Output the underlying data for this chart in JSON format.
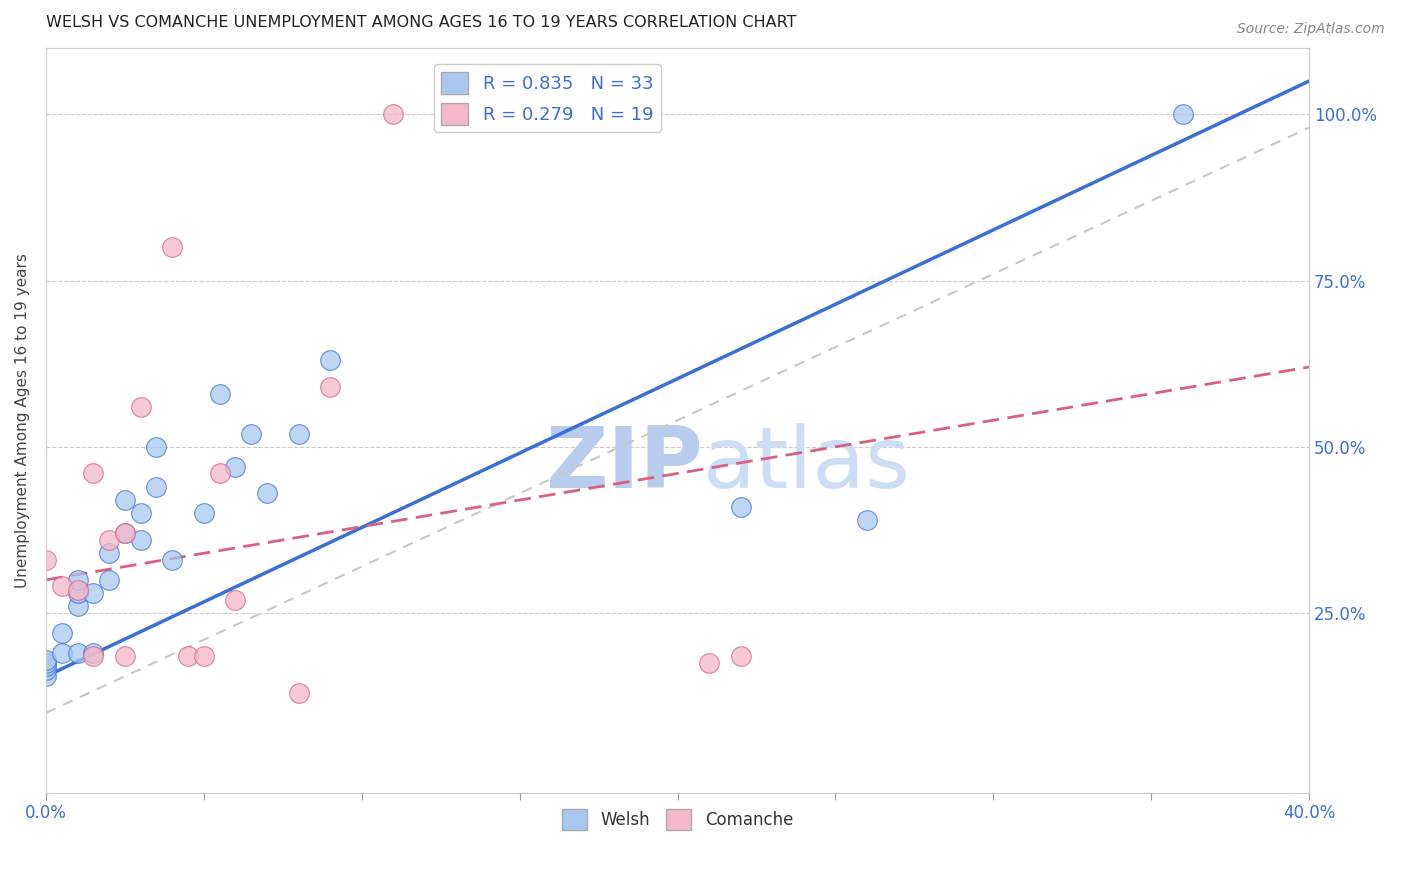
{
  "title": "WELSH VS COMANCHE UNEMPLOYMENT AMONG AGES 16 TO 19 YEARS CORRELATION CHART",
  "source": "Source: ZipAtlas.com",
  "ylabel": "Unemployment Among Ages 16 to 19 years",
  "welsh_R": 0.835,
  "welsh_N": 33,
  "comanche_R": 0.279,
  "comanche_N": 19,
  "xlim": [
    0.0,
    0.4
  ],
  "ylim": [
    -0.02,
    1.1
  ],
  "x_ticks": [
    0.0,
    0.05,
    0.1,
    0.15,
    0.2,
    0.25,
    0.3,
    0.35,
    0.4
  ],
  "y_ticks": [
    0.25,
    0.5,
    0.75,
    1.0
  ],
  "y_tick_labels": [
    "25.0%",
    "50.0%",
    "75.0%",
    "100.0%"
  ],
  "blue_color": "#a8c8f0",
  "pink_color": "#f5b8c8",
  "trend_blue": "#3a6fd8",
  "trend_pink": "#d96080",
  "ref_gray": "#c8c8c8",
  "watermark_color": "#d8e8f8",
  "welsh_points_x": [
    0.0,
    0.0,
    0.0,
    0.0,
    0.0,
    0.005,
    0.005,
    0.01,
    0.01,
    0.01,
    0.01,
    0.015,
    0.015,
    0.02,
    0.02,
    0.025,
    0.025,
    0.03,
    0.03,
    0.035,
    0.035,
    0.04,
    0.05,
    0.055,
    0.06,
    0.065,
    0.07,
    0.08,
    0.09,
    0.15,
    0.22,
    0.26,
    0.36
  ],
  "welsh_points_y": [
    0.155,
    0.165,
    0.17,
    0.175,
    0.18,
    0.19,
    0.22,
    0.19,
    0.26,
    0.28,
    0.3,
    0.19,
    0.28,
    0.3,
    0.34,
    0.37,
    0.42,
    0.36,
    0.4,
    0.44,
    0.5,
    0.33,
    0.4,
    0.58,
    0.47,
    0.52,
    0.43,
    0.52,
    0.63,
    1.0,
    0.41,
    0.39,
    1.0
  ],
  "comanche_points_x": [
    0.0,
    0.005,
    0.01,
    0.015,
    0.015,
    0.02,
    0.025,
    0.025,
    0.03,
    0.04,
    0.045,
    0.05,
    0.055,
    0.06,
    0.08,
    0.09,
    0.11,
    0.21,
    0.22
  ],
  "comanche_points_y": [
    0.33,
    0.29,
    0.285,
    0.46,
    0.185,
    0.36,
    0.37,
    0.185,
    0.56,
    0.8,
    0.185,
    0.185,
    0.46,
    0.27,
    0.13,
    0.59,
    1.0,
    0.175,
    0.185
  ],
  "background_color": "#ffffff",
  "grid_color": "#cccccc",
  "welsh_trend_x": [
    0.0,
    0.4
  ],
  "welsh_trend_y": [
    0.155,
    1.05
  ],
  "comanche_trend_x": [
    0.0,
    0.4
  ],
  "comanche_trend_y": [
    0.3,
    0.62
  ],
  "ref_line_x": [
    0.0,
    0.4
  ],
  "ref_line_y": [
    0.1,
    0.98
  ]
}
